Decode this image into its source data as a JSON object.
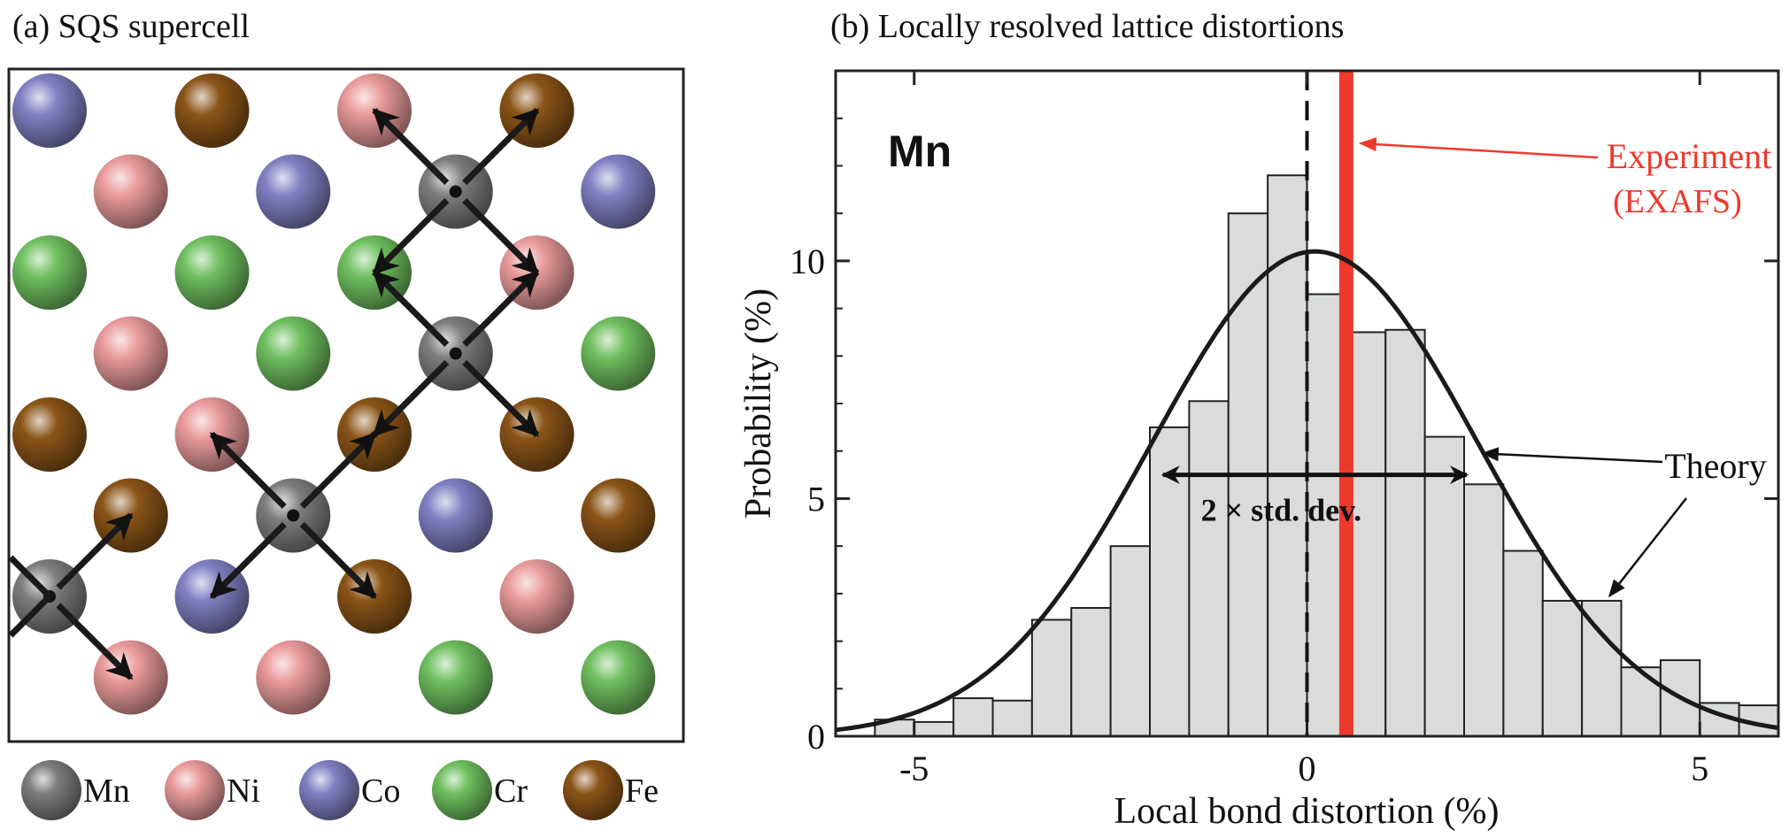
{
  "panel_a": {
    "title": "(a) SQS supercell",
    "colors": {
      "Mn": "#7d7d7d",
      "Ni": "#e99a9a",
      "Co": "#7f80c2",
      "Cr": "#6fbf5f",
      "Fe": "#8a5417"
    },
    "rows": [
      [
        "Co",
        "Fe",
        "Ni",
        "Fe"
      ],
      [
        "Ni",
        "Co",
        "Mn",
        "Co"
      ],
      [
        "Cr",
        "Cr",
        "Cr",
        "Ni"
      ],
      [
        "Ni",
        "Cr",
        "Mn",
        "Cr"
      ],
      [
        "Fe",
        "Ni",
        "Fe",
        "Fe"
      ],
      [
        "Fe",
        "Mn",
        "Co",
        "Fe"
      ],
      [
        "Mn",
        "Co",
        "Fe",
        "Ni"
      ],
      [
        "Ni",
        "Ni",
        "Cr",
        "Cr"
      ]
    ],
    "legend": [
      {
        "element": "Mn",
        "label": "Mn"
      },
      {
        "element": "Ni",
        "label": "Ni"
      },
      {
        "element": "Co",
        "label": "Co"
      },
      {
        "element": "Cr",
        "label": "Cr"
      },
      {
        "element": "Fe",
        "label": "Fe"
      }
    ]
  },
  "chart_data": {
    "type": "bar",
    "title": "(b) Locally resolved lattice distortions",
    "subtitle": "",
    "panel_label": "Mn",
    "xlabel": "Local bond distortion (%)",
    "ylabel": "Probability (%)",
    "xlim": [
      -6,
      6
    ],
    "ylim": [
      0,
      14
    ],
    "xticks": [
      -5,
      0,
      5
    ],
    "yticks": [
      0,
      5,
      10
    ],
    "bin_width": 0.5,
    "bin_starts": [
      -5.5,
      -5.0,
      -4.5,
      -4.0,
      -3.5,
      -3.0,
      -2.5,
      -2.0,
      -1.5,
      -1.0,
      -0.5,
      0.0,
      0.5,
      1.0,
      1.5,
      2.0,
      2.5,
      3.0,
      3.5,
      4.0,
      4.5,
      5.0,
      5.5
    ],
    "values": [
      0.35,
      0.3,
      0.8,
      0.75,
      2.45,
      2.7,
      4.0,
      6.5,
      7.05,
      11.0,
      11.8,
      9.3,
      8.5,
      8.55,
      6.3,
      5.3,
      3.9,
      2.85,
      2.85,
      1.45,
      1.6,
      0.7,
      0.65
    ],
    "theory": {
      "mean": 0.1,
      "sigma": 2.07,
      "peak": 10.2
    },
    "experiment": {
      "x": 0.5,
      "color": "#ee3a2c"
    },
    "zero_line_x": 0,
    "std_arrow": {
      "x1": -1.9,
      "x2": 2.1,
      "y": 5.5
    },
    "annotations": {
      "std": "2 × std. dev.",
      "experiment_line1": "Experiment",
      "experiment_line2": "(EXAFS)",
      "theory": "Theory"
    },
    "grid": false
  }
}
